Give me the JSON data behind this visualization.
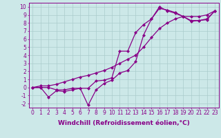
{
  "background_color": "#cce8e8",
  "grid_color": "#aacccc",
  "line_color": "#880088",
  "marker": "D",
  "markersize": 2.0,
  "linewidth": 0.9,
  "xlabel": "Windchill (Refroidissement éolien,°C)",
  "xlabel_fontsize": 6.5,
  "tick_fontsize": 5.5,
  "ylim": [
    -2.5,
    10.5
  ],
  "xlim": [
    -0.5,
    23.5
  ],
  "yticks": [
    -2,
    -1,
    0,
    1,
    2,
    3,
    4,
    5,
    6,
    7,
    8,
    9,
    10
  ],
  "xticks": [
    0,
    1,
    2,
    3,
    4,
    5,
    6,
    7,
    8,
    9,
    10,
    11,
    12,
    13,
    14,
    15,
    16,
    17,
    18,
    19,
    20,
    21,
    22,
    23
  ],
  "series": [
    [
      0.0,
      0.0,
      -1.2,
      -0.4,
      -0.5,
      -0.3,
      -0.1,
      -2.2,
      -0.3,
      0.5,
      0.9,
      1.8,
      2.1,
      3.2,
      6.5,
      8.5,
      9.8,
      9.6,
      9.3,
      8.8,
      8.3,
      8.3,
      8.4,
      9.5
    ],
    [
      0.0,
      0.0,
      0.0,
      -0.3,
      -0.3,
      -0.1,
      -0.1,
      -0.1,
      0.8,
      0.9,
      1.2,
      4.5,
      4.5,
      6.8,
      7.8,
      8.5,
      10.0,
      9.5,
      9.2,
      8.8,
      8.2,
      8.3,
      8.5,
      9.5
    ],
    [
      0.0,
      0.2,
      0.2,
      0.4,
      0.7,
      1.0,
      1.3,
      1.5,
      1.8,
      2.1,
      2.5,
      3.0,
      3.5,
      4.0,
      5.0,
      6.2,
      7.3,
      8.0,
      8.5,
      8.8,
      8.8,
      8.8,
      9.0,
      9.5
    ]
  ]
}
